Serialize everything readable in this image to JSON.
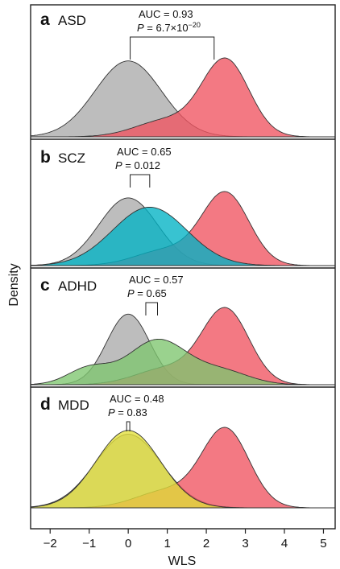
{
  "chart_data": {
    "type": "area",
    "xlabel": "WLS",
    "ylabel": "Density",
    "xlim": [
      -2.5,
      5.3
    ],
    "x_ticks": [
      "−2",
      "−1",
      "0",
      "1",
      "2",
      "3",
      "4",
      "5"
    ],
    "x_tick_values": [
      -2,
      -1,
      0,
      1,
      2,
      3,
      4,
      5
    ],
    "grid": false,
    "panels": [
      {
        "letter": "a",
        "disorder": "ASD",
        "auc": "AUC = 0.93",
        "p_prefix": "P",
        "p_text": " = 6.7×10",
        "p_exp": "−20",
        "series": [
          {
            "color": "#ababab",
            "components": [
              [
                0.0,
                0.85,
                1.0
              ]
            ]
          },
          {
            "color": "#ef5360",
            "components": [
              [
                2.5,
                0.6,
                1.0
              ],
              [
                1.0,
                0.8,
                0.22
              ]
            ]
          }
        ],
        "bracket": [
          0.05,
          2.2
        ]
      },
      {
        "letter": "b",
        "disorder": "SCZ",
        "auc": "AUC = 0.65",
        "p_prefix": "P",
        "p_text": " = 0.012",
        "p_exp": "",
        "series": [
          {
            "color": "#ababab",
            "components": [
              [
                0.0,
                0.75,
                0.95
              ]
            ]
          },
          {
            "color": "#ef5360",
            "components": [
              [
                2.5,
                0.6,
                1.0
              ],
              [
                1.0,
                0.8,
                0.22
              ]
            ]
          },
          {
            "color": "#00b2c4",
            "components": [
              [
                0.55,
                0.95,
                0.82
              ]
            ]
          }
        ],
        "bracket": [
          0.05,
          0.55
        ]
      },
      {
        "letter": "c",
        "disorder": "ADHD",
        "auc": "AUC = 0.57",
        "p_prefix": "P",
        "p_text": " = 0.65",
        "p_exp": "",
        "series": [
          {
            "color": "#ababab",
            "components": [
              [
                0.0,
                0.55,
                0.95
              ]
            ]
          },
          {
            "color": "#ef5360",
            "components": [
              [
                2.5,
                0.6,
                1.0
              ],
              [
                1.0,
                0.8,
                0.22
              ]
            ]
          },
          {
            "color": "#7dc56e",
            "components": [
              [
                0.75,
                0.75,
                0.6
              ],
              [
                -1.0,
                0.55,
                0.22
              ],
              [
                2.4,
                0.7,
                0.18
              ]
            ]
          }
        ],
        "bracket": [
          0.45,
          0.75
        ]
      },
      {
        "letter": "d",
        "disorder": "MDD",
        "auc": "AUC = 0.48",
        "p_prefix": "P",
        "p_text": " = 0.83",
        "p_exp": "",
        "series": [
          {
            "color": "#ababab",
            "components": [
              [
                0.0,
                0.85,
                0.95
              ]
            ]
          },
          {
            "color": "#ef5360",
            "components": [
              [
                2.5,
                0.6,
                1.0
              ],
              [
                1.0,
                0.8,
                0.22
              ]
            ]
          },
          {
            "color": "#e3e03a",
            "components": [
              [
                0.0,
                0.82,
                1.0
              ]
            ]
          }
        ],
        "bracket": [
          -0.04,
          0.04
        ]
      }
    ]
  }
}
